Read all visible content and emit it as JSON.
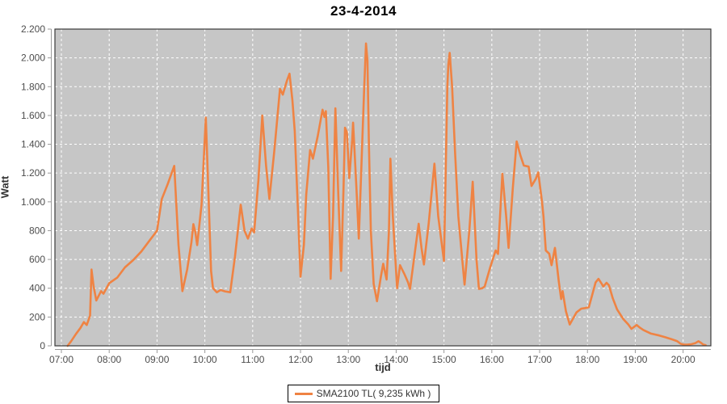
{
  "title": "23-4-2014",
  "axes": {
    "x_label": "tijd",
    "y_label": "Watt"
  },
  "legend": {
    "label": "SMA2100 TL( 9,235 kWh )",
    "swatch_color": "#EF8343"
  },
  "colors": {
    "plot_background": "#C6C6C6",
    "grid_line": "#FFFFFF",
    "series_line": "#EF8343",
    "tick_label": "#4D4D4D",
    "axis_line": "#999999",
    "plot_border": "#3A3A3A"
  },
  "chart_data": {
    "type": "line",
    "title": "23-4-2014",
    "xlabel": "tijd",
    "ylabel": "Watt",
    "x_tick_labels": [
      "07:00",
      "08:00",
      "09:00",
      "10:00",
      "11:00",
      "12:00",
      "13:00",
      "14:00",
      "15:00",
      "16:00",
      "17:00",
      "18:00",
      "19:00",
      "20:00"
    ],
    "x_tick_hours": [
      7,
      8,
      9,
      10,
      11,
      12,
      13,
      14,
      15,
      16,
      17,
      18,
      19,
      20
    ],
    "y_tick_labels": [
      "0",
      "200",
      "400",
      "600",
      "800",
      "1.000",
      "1.200",
      "1.400",
      "1.600",
      "1.800",
      "2.000",
      "2.200"
    ],
    "y_tick_values": [
      0,
      200,
      400,
      600,
      800,
      1000,
      1200,
      1400,
      1600,
      1800,
      2000,
      2200
    ],
    "xlim_hours": [
      6.865,
      20.58
    ],
    "ylim": [
      0,
      2200
    ],
    "grid": true,
    "grid_style": "white dashed on gray background",
    "legend_position": "bottom-center",
    "series": [
      {
        "name": "SMA2100 TL( 9,235 kWh )",
        "color": "#EF8343",
        "points_hours_watts": [
          [
            7.13,
            0
          ],
          [
            7.2,
            30
          ],
          [
            7.3,
            80
          ],
          [
            7.4,
            125
          ],
          [
            7.47,
            165
          ],
          [
            7.53,
            145
          ],
          [
            7.6,
            210
          ],
          [
            7.63,
            530
          ],
          [
            7.67,
            420
          ],
          [
            7.73,
            315
          ],
          [
            7.83,
            380
          ],
          [
            7.88,
            362
          ],
          [
            8.0,
            435
          ],
          [
            8.17,
            475
          ],
          [
            8.33,
            545
          ],
          [
            8.5,
            595
          ],
          [
            8.67,
            655
          ],
          [
            8.83,
            725
          ],
          [
            9.0,
            800
          ],
          [
            9.1,
            1020
          ],
          [
            9.22,
            1120
          ],
          [
            9.36,
            1250
          ],
          [
            9.45,
            700
          ],
          [
            9.53,
            380
          ],
          [
            9.63,
            530
          ],
          [
            9.72,
            720
          ],
          [
            9.76,
            845
          ],
          [
            9.8,
            790
          ],
          [
            9.84,
            700
          ],
          [
            9.93,
            980
          ],
          [
            10.02,
            1585
          ],
          [
            10.07,
            1100
          ],
          [
            10.13,
            520
          ],
          [
            10.17,
            400
          ],
          [
            10.25,
            372
          ],
          [
            10.33,
            388
          ],
          [
            10.42,
            378
          ],
          [
            10.53,
            372
          ],
          [
            10.63,
            620
          ],
          [
            10.75,
            980
          ],
          [
            10.83,
            800
          ],
          [
            10.9,
            745
          ],
          [
            10.98,
            815
          ],
          [
            11.03,
            788
          ],
          [
            11.12,
            1150
          ],
          [
            11.2,
            1600
          ],
          [
            11.28,
            1250
          ],
          [
            11.35,
            1020
          ],
          [
            11.45,
            1350
          ],
          [
            11.52,
            1600
          ],
          [
            11.57,
            1785
          ],
          [
            11.63,
            1745
          ],
          [
            11.72,
            1845
          ],
          [
            11.77,
            1890
          ],
          [
            11.83,
            1705
          ],
          [
            11.88,
            1490
          ],
          [
            11.95,
            905
          ],
          [
            12.0,
            480
          ],
          [
            12.07,
            700
          ],
          [
            12.12,
            1050
          ],
          [
            12.2,
            1360
          ],
          [
            12.26,
            1300
          ],
          [
            12.36,
            1455
          ],
          [
            12.46,
            1640
          ],
          [
            12.5,
            1590
          ],
          [
            12.53,
            1630
          ],
          [
            12.58,
            1240
          ],
          [
            12.63,
            465
          ],
          [
            12.68,
            900
          ],
          [
            12.73,
            1650
          ],
          [
            12.79,
            1050
          ],
          [
            12.85,
            520
          ],
          [
            12.9,
            1100
          ],
          [
            12.93,
            1515
          ],
          [
            12.97,
            1485
          ],
          [
            13.02,
            1165
          ],
          [
            13.08,
            1430
          ],
          [
            13.1,
            1550
          ],
          [
            13.17,
            1090
          ],
          [
            13.22,
            745
          ],
          [
            13.3,
            1500
          ],
          [
            13.33,
            1780
          ],
          [
            13.37,
            2100
          ],
          [
            13.4,
            1980
          ],
          [
            13.43,
            1400
          ],
          [
            13.47,
            800
          ],
          [
            13.53,
            430
          ],
          [
            13.6,
            310
          ],
          [
            13.68,
            480
          ],
          [
            13.73,
            570
          ],
          [
            13.8,
            460
          ],
          [
            13.85,
            800
          ],
          [
            13.88,
            1300
          ],
          [
            13.93,
            900
          ],
          [
            14.02,
            400
          ],
          [
            14.08,
            560
          ],
          [
            14.17,
            500
          ],
          [
            14.25,
            440
          ],
          [
            14.29,
            395
          ],
          [
            14.38,
            620
          ],
          [
            14.47,
            848
          ],
          [
            14.53,
            680
          ],
          [
            14.58,
            565
          ],
          [
            14.68,
            850
          ],
          [
            14.8,
            1265
          ],
          [
            14.88,
            900
          ],
          [
            15.0,
            590
          ],
          [
            15.07,
            1800
          ],
          [
            15.09,
            1950
          ],
          [
            15.12,
            2035
          ],
          [
            15.17,
            1800
          ],
          [
            15.23,
            1350
          ],
          [
            15.3,
            900
          ],
          [
            15.43,
            425
          ],
          [
            15.53,
            800
          ],
          [
            15.6,
            1140
          ],
          [
            15.68,
            600
          ],
          [
            15.73,
            395
          ],
          [
            15.8,
            400
          ],
          [
            15.85,
            412
          ],
          [
            15.97,
            550
          ],
          [
            16.08,
            662
          ],
          [
            16.13,
            638
          ],
          [
            16.22,
            1195
          ],
          [
            16.3,
            900
          ],
          [
            16.35,
            680
          ],
          [
            16.44,
            1100
          ],
          [
            16.52,
            1420
          ],
          [
            16.6,
            1320
          ],
          [
            16.67,
            1252
          ],
          [
            16.77,
            1245
          ],
          [
            16.83,
            1110
          ],
          [
            16.92,
            1160
          ],
          [
            16.97,
            1205
          ],
          [
            17.05,
            1000
          ],
          [
            17.08,
            900
          ],
          [
            17.13,
            662
          ],
          [
            17.2,
            640
          ],
          [
            17.25,
            560
          ],
          [
            17.32,
            680
          ],
          [
            17.4,
            450
          ],
          [
            17.45,
            325
          ],
          [
            17.48,
            380
          ],
          [
            17.55,
            240
          ],
          [
            17.63,
            148
          ],
          [
            17.7,
            190
          ],
          [
            17.77,
            232
          ],
          [
            17.87,
            258
          ],
          [
            17.95,
            262
          ],
          [
            18.03,
            268
          ],
          [
            18.12,
            380
          ],
          [
            18.17,
            440
          ],
          [
            18.23,
            465
          ],
          [
            18.3,
            430
          ],
          [
            18.33,
            412
          ],
          [
            18.4,
            438
          ],
          [
            18.45,
            420
          ],
          [
            18.53,
            330
          ],
          [
            18.62,
            252
          ],
          [
            18.75,
            185
          ],
          [
            18.85,
            150
          ],
          [
            18.92,
            118
          ],
          [
            19.0,
            138
          ],
          [
            19.03,
            145
          ],
          [
            19.1,
            125
          ],
          [
            19.17,
            110
          ],
          [
            19.33,
            85
          ],
          [
            19.5,
            72
          ],
          [
            19.62,
            60
          ],
          [
            19.77,
            45
          ],
          [
            19.87,
            33
          ],
          [
            19.95,
            14
          ],
          [
            20.03,
            8
          ],
          [
            20.1,
            9
          ],
          [
            20.17,
            11
          ],
          [
            20.25,
            18
          ],
          [
            20.32,
            32
          ],
          [
            20.37,
            22
          ],
          [
            20.42,
            9
          ],
          [
            20.47,
            5
          ]
        ]
      }
    ]
  }
}
